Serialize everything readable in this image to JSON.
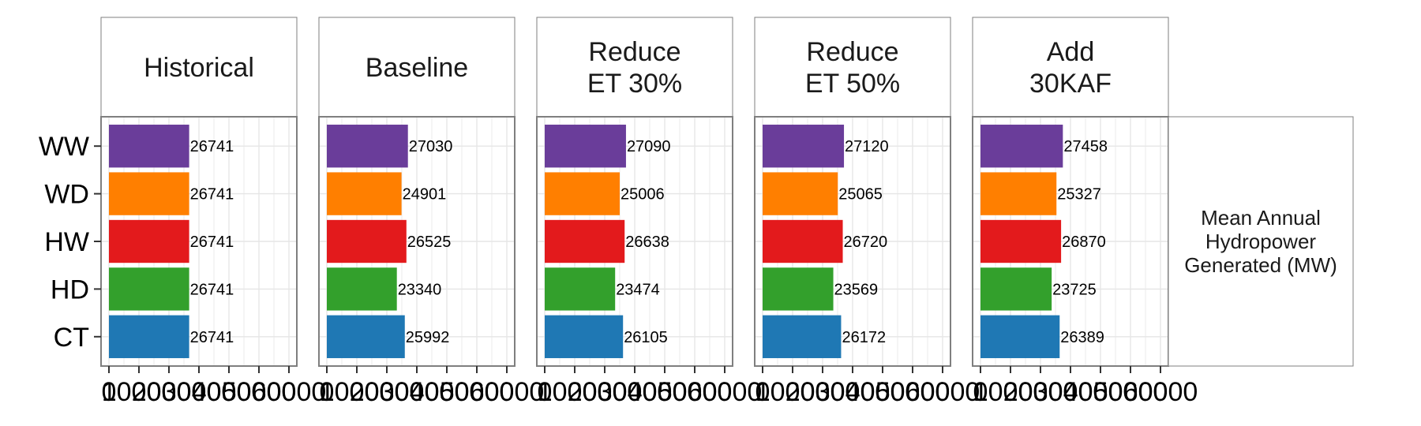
{
  "chart_data": {
    "type": "bar",
    "orientation": "horizontal",
    "categories": [
      "WW",
      "WD",
      "HW",
      "HD",
      "CT"
    ],
    "category_colors": {
      "WW": "#6A3D9A",
      "WD": "#FF7F00",
      "HW": "#E31A1C",
      "HD": "#33A02C",
      "CT": "#1F78B4"
    },
    "xlim": [
      0,
      60000
    ],
    "x_ticks": [
      0,
      10000,
      20000,
      30000,
      40000,
      50000,
      60000
    ],
    "x_tick_labels": [
      "0",
      "10000",
      "20000",
      "30000",
      "40000",
      "50000",
      "60000"
    ],
    "grid": true,
    "facet_strip_label": "Mean Annual\nHydropower\nGenerated (MW)",
    "panels": [
      {
        "title": "Historical",
        "values": {
          "WW": 26741,
          "WD": 26741,
          "HW": 26741,
          "HD": 26741,
          "CT": 26741
        }
      },
      {
        "title": "Baseline",
        "values": {
          "WW": 27030,
          "WD": 24901,
          "HW": 26525,
          "HD": 23340,
          "CT": 25992
        }
      },
      {
        "title": "Reduce\nET 30%",
        "values": {
          "WW": 27090,
          "WD": 25006,
          "HW": 26638,
          "HD": 23474,
          "CT": 26105
        }
      },
      {
        "title": "Reduce\nET 50%",
        "values": {
          "WW": 27120,
          "WD": 25065,
          "HW": 26720,
          "HD": 23569,
          "CT": 26172
        }
      },
      {
        "title": "Add\n30KAF",
        "values": {
          "WW": 27458,
          "WD": 25327,
          "HW": 26870,
          "HD": 23725,
          "CT": 26389
        }
      }
    ]
  }
}
